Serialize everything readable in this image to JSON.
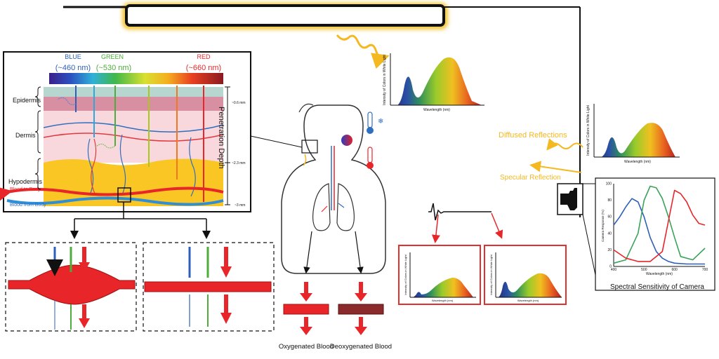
{
  "skin": {
    "bands": {
      "blue": {
        "name": "BLUE",
        "wavelength": "(~460 nm)"
      },
      "green": {
        "name": "GREEN",
        "wavelength": "(~530 nm)"
      },
      "red": {
        "name": "RED",
        "wavelength": "(~660 nm)"
      }
    },
    "layers": {
      "epidermis": "Epidermis",
      "dermis": "Dermis",
      "hypodermis": "Hypodermis"
    },
    "depth_label": "Penetration Depth",
    "depth_marks": {
      "d1": "~0.6 mm",
      "d2": "~2.3 mm",
      "d3": "~3 mm"
    },
    "vessel_labels": {
      "to_body": "Blood to Body",
      "from_body": "Blood from Body"
    }
  },
  "spectra": {
    "ylabel": "Intensity of Colors in White Light",
    "xlabel": "Wavelength (nm)"
  },
  "reflections": {
    "diffused": "Diffused Reflections",
    "specular": "Specular Reflection"
  },
  "camera": {
    "title": "Spectral Sensitivity of Camera",
    "xlabel": "Wavelength (nm)",
    "ylabel": "Camera Response (%)",
    "x_ticks": [
      "400",
      "500",
      "600",
      "700"
    ],
    "y_ticks": [
      "0",
      "20",
      "40",
      "60",
      "80",
      "100"
    ]
  },
  "blood": {
    "oxygenated": "Oxygenated Blood",
    "deoxygenated": "Deoxygenated Blood"
  },
  "colors": {
    "blue": "#2e5fb8",
    "green": "#4dac3a",
    "red": "#e8262a",
    "lamp_glow": "#f4c430",
    "dark_red": "#8b2a2a",
    "box_red": "#e03030"
  },
  "chart_data": [
    {
      "type": "line",
      "x_ticks": [
        "400",
        "500",
        "600",
        "700"
      ],
      "y_ticks": [
        "0",
        "20",
        "40",
        "60",
        "80",
        "100"
      ],
      "xlabel": "Wavelength (nm)",
      "ylabel": "Camera Response (%)",
      "xlim": [
        400,
        700
      ],
      "ylim": [
        0,
        100
      ],
      "series": [
        {
          "color": "#2e5fb8",
          "x": [
            400,
            420,
            440,
            460,
            480,
            500,
            520,
            540,
            560,
            580,
            600,
            640,
            680,
            700
          ],
          "y": [
            50,
            60,
            72,
            82,
            78,
            60,
            35,
            18,
            10,
            6,
            4,
            3,
            3,
            3
          ]
        },
        {
          "color": "#3aa35a",
          "x": [
            400,
            440,
            480,
            500,
            520,
            540,
            560,
            580,
            600,
            620,
            660,
            700
          ],
          "y": [
            4,
            8,
            40,
            80,
            97,
            95,
            82,
            60,
            35,
            12,
            8,
            22
          ]
        },
        {
          "color": "#e8262a",
          "x": [
            400,
            440,
            480,
            520,
            560,
            580,
            600,
            620,
            640,
            660,
            680,
            700
          ],
          "y": [
            20,
            10,
            6,
            6,
            18,
            55,
            92,
            88,
            78,
            62,
            52,
            50
          ]
        }
      ]
    }
  ]
}
